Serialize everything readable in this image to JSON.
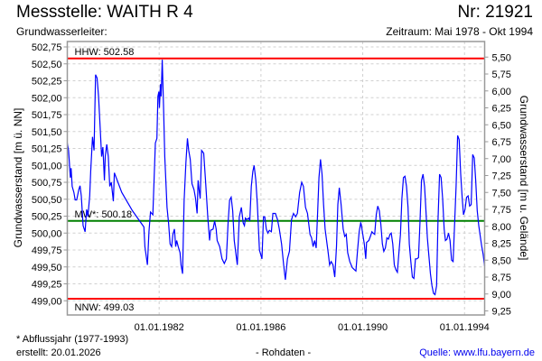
{
  "header": {
    "title": "Messstelle: WAITH R 4",
    "number": "Nr: 21921",
    "aquifer": "Grundwasserleiter:",
    "period": "Zeitraum: Mai 1978 - Okt 1994"
  },
  "footer": {
    "footnote": "* Abflussjahr (1977-1993)",
    "created": "erstellt:  20.01.2026",
    "datatype": "- Rohdaten -",
    "source": "Quelle: www.lfu.bayern.de"
  },
  "colors": {
    "series": "#0000ff",
    "extreme": "#ff0000",
    "mean": "#008000",
    "grid": "#d0d0d0"
  },
  "chart_data": {
    "type": "line",
    "title": "Messstelle: WAITH R 4",
    "xlabel": "",
    "ylabel": "Grundwasserstand [m ü. NN]",
    "y2label": "Grundwasserstand [m u. Gelände]",
    "xlim": [
      1978.39,
      1994.79
    ],
    "ylim": [
      498.79,
      502.83
    ],
    "ground_level": 508.1,
    "grid": true,
    "x_ticks": [
      {
        "value": 1982,
        "label": "01.01.1982"
      },
      {
        "value": 1986,
        "label": "01.01.1986"
      },
      {
        "value": 1990,
        "label": "01.01.1990"
      },
      {
        "value": 1994,
        "label": "01.01.1994"
      }
    ],
    "y_ticks": [
      "499,00",
      "499,25",
      "499,50",
      "499,75",
      "500,00",
      "500,25",
      "500,50",
      "500,75",
      "501,00",
      "501,25",
      "501,50",
      "501,75",
      "502,00",
      "502,25",
      "502,50",
      "502,75"
    ],
    "y2_ticks": [
      "5,50",
      "5,75",
      "6,00",
      "6,25",
      "6,50",
      "6,75",
      "7,00",
      "7,25",
      "7,50",
      "7,75",
      "8,00",
      "8,25",
      "8,50",
      "8,75",
      "9,00",
      "9,25"
    ],
    "reference_lines": [
      {
        "name": "HHW",
        "label": "HHW: 502.58",
        "value": 502.58,
        "color": "#ff0000"
      },
      {
        "name": "MW",
        "label": "MW*: 500.18",
        "value": 500.18,
        "color": "#008000"
      },
      {
        "name": "NNW",
        "label": "NNW: 499.03",
        "value": 499.03,
        "color": "#ff0000"
      }
    ],
    "series": [
      {
        "name": "Grundwasserstand",
        "x": [
          1978.39,
          1978.44,
          1978.51,
          1978.54,
          1978.58,
          1978.65,
          1978.7,
          1978.76,
          1978.84,
          1978.89,
          1978.94,
          1979.01,
          1979.09,
          1979.15,
          1979.2,
          1979.27,
          1979.31,
          1979.38,
          1979.44,
          1979.5,
          1979.56,
          1979.62,
          1979.68,
          1979.74,
          1979.79,
          1979.85,
          1979.88,
          1979.94,
          1980.0,
          1980.06,
          1980.12,
          1980.2,
          1980.24,
          1980.53,
          1980.95,
          1981.4,
          1981.44,
          1981.54,
          1981.6,
          1981.66,
          1981.75,
          1981.85,
          1981.91,
          1981.95,
          1981.99,
          1982.01,
          1982.05,
          1982.08,
          1982.12,
          1982.17,
          1982.22,
          1982.31,
          1982.37,
          1982.43,
          1982.49,
          1982.54,
          1982.6,
          1982.65,
          1982.69,
          1982.75,
          1982.82,
          1982.86,
          1982.92,
          1982.98,
          1983.05,
          1983.11,
          1983.16,
          1983.22,
          1983.29,
          1983.37,
          1983.43,
          1983.49,
          1983.53,
          1983.57,
          1983.61,
          1983.67,
          1983.75,
          1983.82,
          1983.91,
          1983.98,
          1984.02,
          1984.12,
          1984.18,
          1984.24,
          1984.28,
          1984.38,
          1984.47,
          1984.56,
          1984.64,
          1984.71,
          1984.77,
          1984.83,
          1984.89,
          1984.95,
          1985.07,
          1985.15,
          1985.23,
          1985.3,
          1985.35,
          1985.39,
          1985.44,
          1985.52,
          1985.56,
          1985.62,
          1985.68,
          1985.73,
          1985.8,
          1985.86,
          1985.94,
          1986.04,
          1986.1,
          1986.15,
          1986.21,
          1986.27,
          1986.33,
          1986.41,
          1986.47,
          1986.57,
          1986.65,
          1986.72,
          1986.81,
          1986.89,
          1986.96,
          1987.04,
          1987.12,
          1987.2,
          1987.28,
          1987.36,
          1987.43,
          1987.52,
          1987.6,
          1987.67,
          1987.75,
          1987.83,
          1987.93,
          1987.99,
          1988.05,
          1988.11,
          1988.17,
          1988.23,
          1988.28,
          1988.34,
          1988.4,
          1988.46,
          1988.52,
          1988.64,
          1988.7,
          1988.76,
          1988.83,
          1988.9,
          1988.97,
          1989.02,
          1989.08,
          1989.15,
          1989.23,
          1989.29,
          1989.35,
          1989.41,
          1989.49,
          1989.59,
          1989.67,
          1989.73,
          1989.79,
          1989.86,
          1989.92,
          1989.94,
          1990.0,
          1990.06,
          1990.12,
          1990.15,
          1990.24,
          1990.3,
          1990.36,
          1990.41,
          1990.47,
          1990.53,
          1990.59,
          1990.65,
          1990.71,
          1990.77,
          1990.83,
          1990.89,
          1990.95,
          1991.01,
          1991.07,
          1991.12,
          1991.18,
          1991.24,
          1991.3,
          1991.36,
          1991.42,
          1991.48,
          1991.54,
          1991.6,
          1991.66,
          1991.72,
          1991.78,
          1991.83,
          1991.89,
          1991.95,
          1992.01,
          1992.07,
          1992.13,
          1992.19,
          1992.25,
          1992.31,
          1992.37,
          1992.43,
          1992.49,
          1992.54,
          1992.6,
          1992.66,
          1992.72,
          1992.78,
          1992.84,
          1992.9,
          1992.96,
          1993.02,
          1993.08,
          1993.14,
          1993.2,
          1993.25,
          1993.31,
          1993.37,
          1993.43,
          1993.49,
          1993.55,
          1993.61,
          1993.67,
          1993.73,
          1993.79,
          1993.85,
          1993.91,
          1993.96,
          1994.02,
          1994.08,
          1994.14,
          1994.2,
          1994.26,
          1994.32,
          1994.38,
          1994.44,
          1994.5,
          1994.56,
          1994.62,
          1994.67,
          1994.73,
          1994.79
        ],
        "y": [
          501.33,
          501.22,
          500.82,
          500.96,
          500.69,
          500.6,
          500.49,
          500.49,
          500.64,
          500.7,
          500.55,
          500.11,
          500.02,
          500.35,
          500.24,
          500.55,
          500.91,
          501.42,
          501.22,
          502.34,
          502.29,
          502.02,
          501.58,
          501.13,
          501.27,
          500.78,
          501.13,
          501.31,
          501.13,
          500.69,
          500.75,
          500.47,
          500.89,
          500.6,
          500.33,
          500.09,
          499.8,
          499.53,
          500.02,
          500.31,
          500.27,
          501.33,
          501.4,
          502.02,
          502.09,
          501.85,
          502.2,
          502.02,
          502.56,
          501.89,
          501.13,
          500.38,
          500.15,
          499.84,
          499.8,
          499.98,
          500.06,
          499.8,
          499.89,
          499.8,
          499.71,
          499.53,
          499.4,
          500.47,
          501.04,
          501.4,
          501.22,
          501.09,
          500.73,
          500.64,
          500.51,
          500.29,
          500.78,
          500.64,
          500.51,
          501.22,
          501.18,
          500.78,
          500.24,
          499.89,
          500.04,
          500.06,
          500.18,
          500.06,
          499.89,
          499.8,
          499.62,
          499.55,
          499.62,
          500.15,
          500.49,
          500.53,
          500.33,
          499.89,
          499.53,
          500.24,
          500.38,
          500.15,
          500.11,
          500.22,
          500.2,
          500.22,
          500.18,
          500.69,
          500.91,
          501.0,
          500.78,
          500.42,
          499.75,
          499.62,
          500.24,
          500.24,
          500.06,
          500.0,
          500.04,
          500.02,
          500.29,
          500.29,
          500.2,
          500.06,
          499.84,
          499.53,
          499.31,
          499.62,
          499.73,
          500.2,
          500.29,
          500.24,
          500.29,
          500.6,
          500.75,
          500.69,
          500.38,
          500.29,
          499.98,
          499.93,
          499.8,
          499.89,
          499.78,
          500.33,
          500.82,
          501.09,
          500.87,
          500.42,
          500.06,
          499.71,
          499.53,
          499.58,
          499.53,
          499.35,
          499.8,
          500.42,
          500.67,
          500.42,
          500.06,
          499.95,
          499.98,
          499.71,
          499.58,
          499.49,
          499.46,
          499.44,
          499.71,
          500.02,
          500.15,
          500.13,
          499.98,
          499.84,
          499.62,
          499.86,
          499.89,
          499.95,
          500.02,
          500.0,
          499.98,
          500.27,
          500.4,
          500.33,
          500.13,
          499.84,
          499.73,
          499.78,
          499.93,
          499.91,
          499.98,
          500.0,
          499.84,
          499.53,
          499.46,
          499.42,
          499.71,
          499.98,
          500.51,
          500.82,
          500.84,
          500.69,
          500.38,
          499.84,
          499.58,
          499.35,
          499.33,
          499.62,
          499.62,
          499.64,
          500.15,
          500.78,
          500.87,
          500.69,
          500.29,
          499.93,
          499.66,
          499.4,
          499.22,
          499.11,
          499.09,
          499.22,
          500.2,
          500.87,
          500.82,
          500.51,
          500.06,
          499.89,
          499.91,
          500.0,
          499.89,
          499.6,
          499.58,
          500.15,
          500.69,
          501.44,
          501.38,
          500.87,
          500.51,
          500.27,
          500.35,
          500.53,
          500.55,
          500.4,
          500.42,
          501.16,
          501.11,
          500.78,
          500.33,
          500.11,
          499.95,
          499.82,
          499.69,
          499.51
        ]
      }
    ]
  }
}
